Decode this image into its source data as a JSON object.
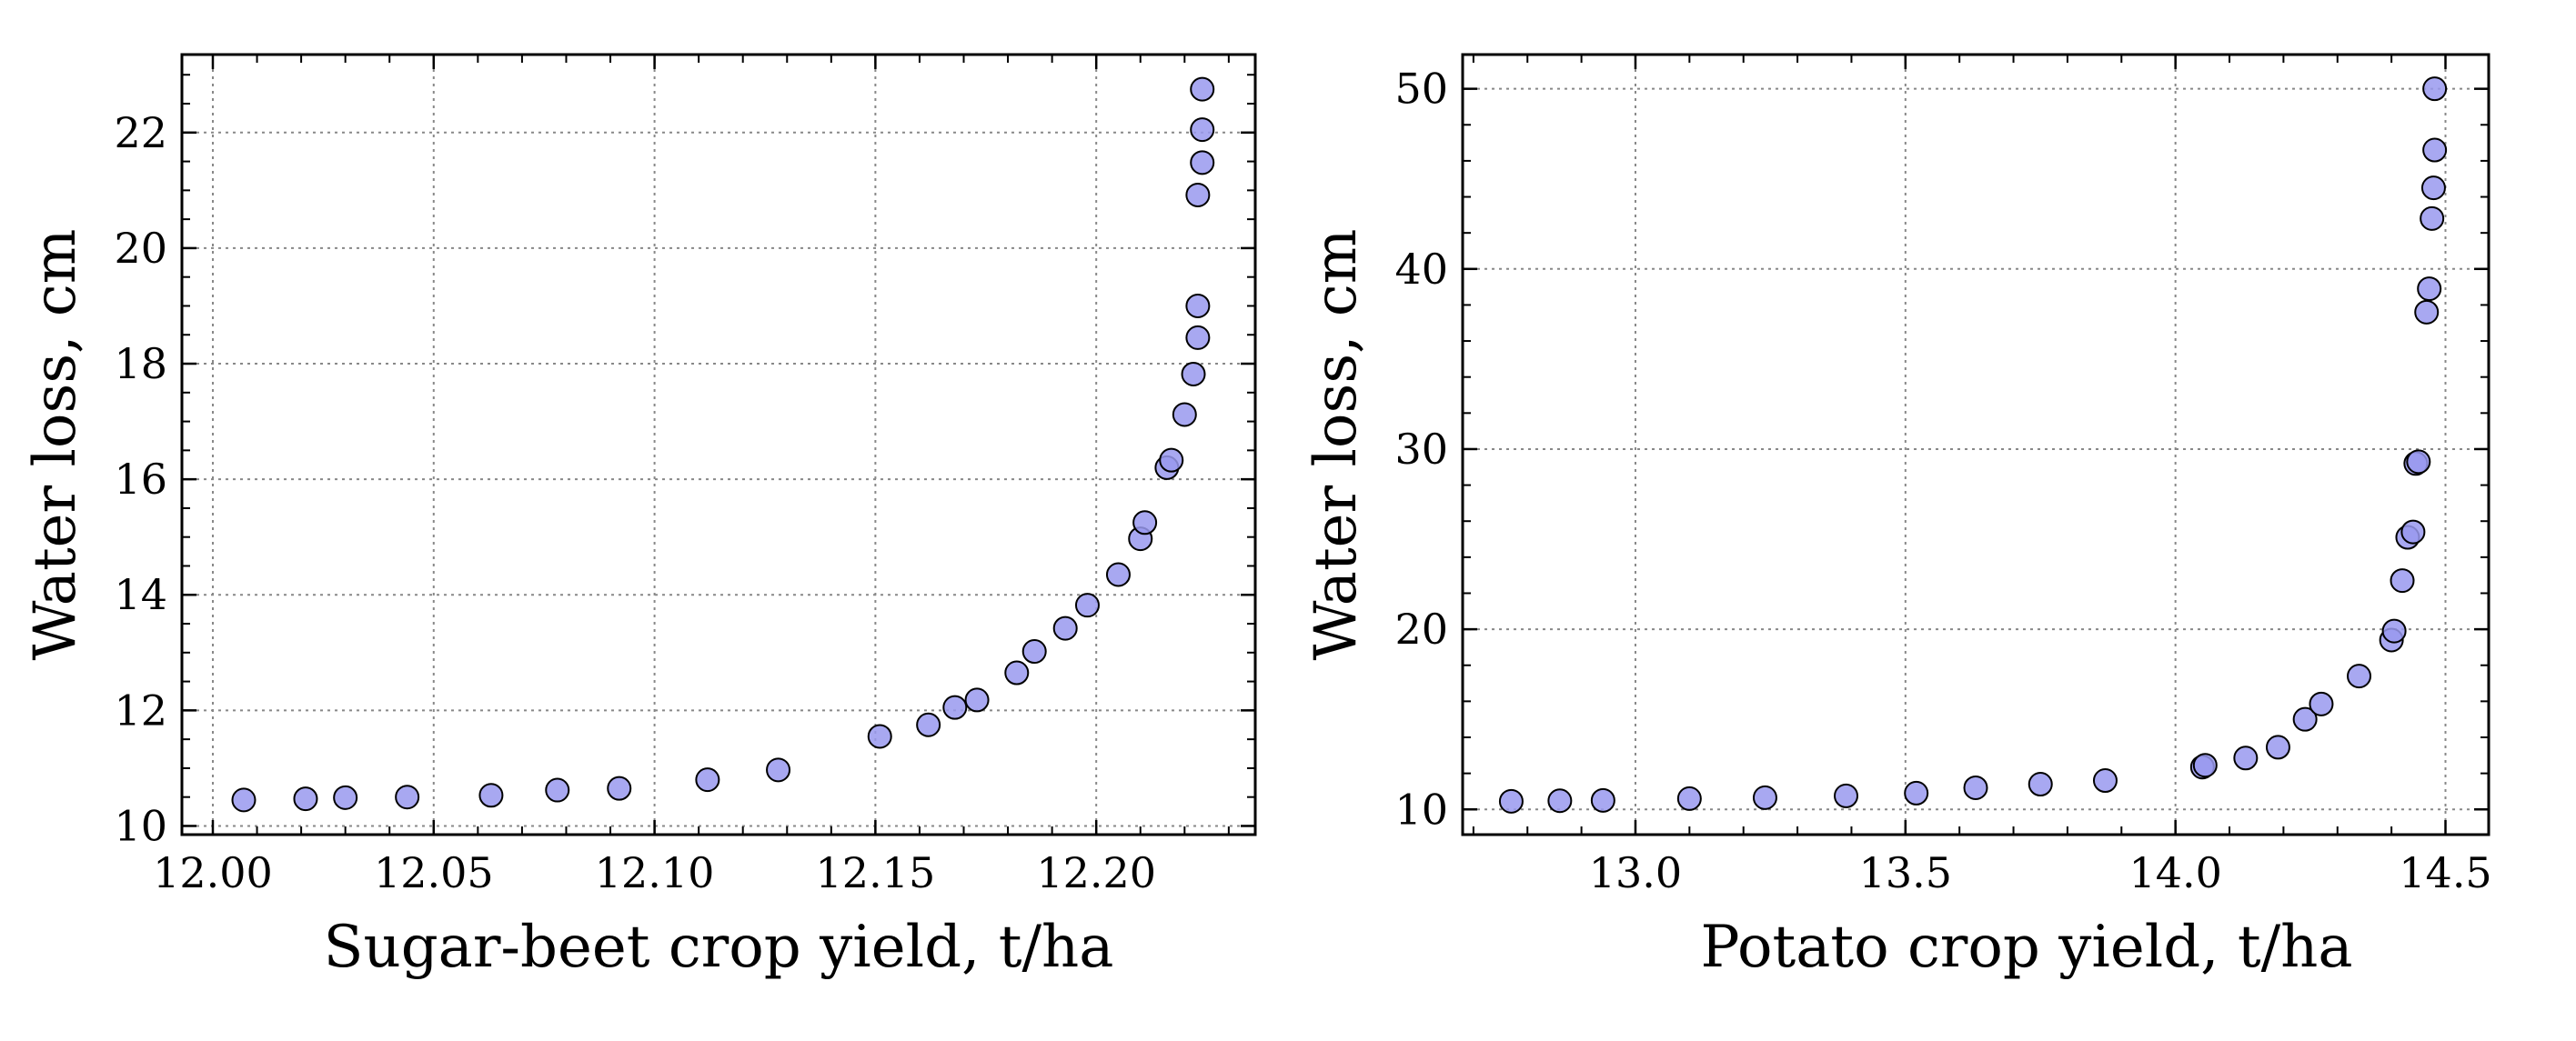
{
  "chart_data": [
    {
      "type": "scatter",
      "title": "",
      "xlabel": "Sugar-beet crop yield, t/ha",
      "ylabel": "Water loss, cm",
      "xlim": [
        11.993,
        12.236
      ],
      "ylim": [
        9.85,
        23.35
      ],
      "xticks": [
        12.0,
        12.05,
        12.1,
        12.15,
        12.2
      ],
      "xtick_labels": [
        "12.00",
        "12.05",
        "12.10",
        "12.15",
        "12.20"
      ],
      "yticks": [
        10,
        12,
        14,
        16,
        18,
        20,
        22
      ],
      "ytick_labels": [
        "10",
        "12",
        "14",
        "16",
        "18",
        "20",
        "22"
      ],
      "grid": true,
      "marker_color": "#9999ee",
      "edge_color": "#000000",
      "points": [
        {
          "x": 12.007,
          "y": 10.45
        },
        {
          "x": 12.021,
          "y": 10.47
        },
        {
          "x": 12.03,
          "y": 10.49
        },
        {
          "x": 12.044,
          "y": 10.5
        },
        {
          "x": 12.063,
          "y": 10.53
        },
        {
          "x": 12.078,
          "y": 10.62
        },
        {
          "x": 12.092,
          "y": 10.65
        },
        {
          "x": 12.112,
          "y": 10.8
        },
        {
          "x": 12.128,
          "y": 10.97
        },
        {
          "x": 12.151,
          "y": 11.55
        },
        {
          "x": 12.162,
          "y": 11.75
        },
        {
          "x": 12.168,
          "y": 12.05
        },
        {
          "x": 12.173,
          "y": 12.18
        },
        {
          "x": 12.182,
          "y": 12.65
        },
        {
          "x": 12.186,
          "y": 13.02
        },
        {
          "x": 12.193,
          "y": 13.42
        },
        {
          "x": 12.198,
          "y": 13.82
        },
        {
          "x": 12.205,
          "y": 14.35
        },
        {
          "x": 12.21,
          "y": 14.97
        },
        {
          "x": 12.211,
          "y": 15.25
        },
        {
          "x": 12.216,
          "y": 16.2
        },
        {
          "x": 12.217,
          "y": 16.33
        },
        {
          "x": 12.22,
          "y": 17.12
        },
        {
          "x": 12.222,
          "y": 17.82
        },
        {
          "x": 12.223,
          "y": 18.45
        },
        {
          "x": 12.223,
          "y": 19.0
        },
        {
          "x": 12.223,
          "y": 20.92
        },
        {
          "x": 12.224,
          "y": 21.48
        },
        {
          "x": 12.224,
          "y": 22.05
        },
        {
          "x": 12.224,
          "y": 22.75
        }
      ]
    },
    {
      "type": "scatter",
      "title": "",
      "xlabel": "Potato crop yield, t/ha",
      "ylabel": "Water loss, cm",
      "xlim": [
        12.68,
        14.58
      ],
      "ylim": [
        8.6,
        51.9
      ],
      "xticks": [
        13.0,
        13.5,
        14.0,
        14.5
      ],
      "xtick_labels": [
        "13.0",
        "13.5",
        "14.0",
        "14.5"
      ],
      "yticks": [
        10,
        20,
        30,
        40,
        50
      ],
      "ytick_labels": [
        "10",
        "20",
        "30",
        "40",
        "50"
      ],
      "grid": true,
      "marker_color": "#9999ee",
      "edge_color": "#000000",
      "points": [
        {
          "x": 12.77,
          "y": 10.45
        },
        {
          "x": 12.86,
          "y": 10.48
        },
        {
          "x": 12.94,
          "y": 10.5
        },
        {
          "x": 13.1,
          "y": 10.6
        },
        {
          "x": 13.24,
          "y": 10.65
        },
        {
          "x": 13.39,
          "y": 10.75
        },
        {
          "x": 13.52,
          "y": 10.9
        },
        {
          "x": 13.63,
          "y": 11.2
        },
        {
          "x": 13.75,
          "y": 11.4
        },
        {
          "x": 13.87,
          "y": 11.6
        },
        {
          "x": 14.05,
          "y": 12.35
        },
        {
          "x": 14.055,
          "y": 12.45
        },
        {
          "x": 14.13,
          "y": 12.85
        },
        {
          "x": 14.19,
          "y": 13.45
        },
        {
          "x": 14.24,
          "y": 15.0
        },
        {
          "x": 14.27,
          "y": 15.85
        },
        {
          "x": 14.34,
          "y": 17.4
        },
        {
          "x": 14.4,
          "y": 19.4
        },
        {
          "x": 14.405,
          "y": 19.9
        },
        {
          "x": 14.42,
          "y": 22.7
        },
        {
          "x": 14.43,
          "y": 25.1
        },
        {
          "x": 14.44,
          "y": 25.4
        },
        {
          "x": 14.445,
          "y": 29.2
        },
        {
          "x": 14.45,
          "y": 29.3
        },
        {
          "x": 14.465,
          "y": 37.6
        },
        {
          "x": 14.47,
          "y": 38.9
        },
        {
          "x": 14.475,
          "y": 42.8
        },
        {
          "x": 14.478,
          "y": 44.5
        },
        {
          "x": 14.48,
          "y": 46.6
        },
        {
          "x": 14.48,
          "y": 50.0
        }
      ]
    }
  ]
}
